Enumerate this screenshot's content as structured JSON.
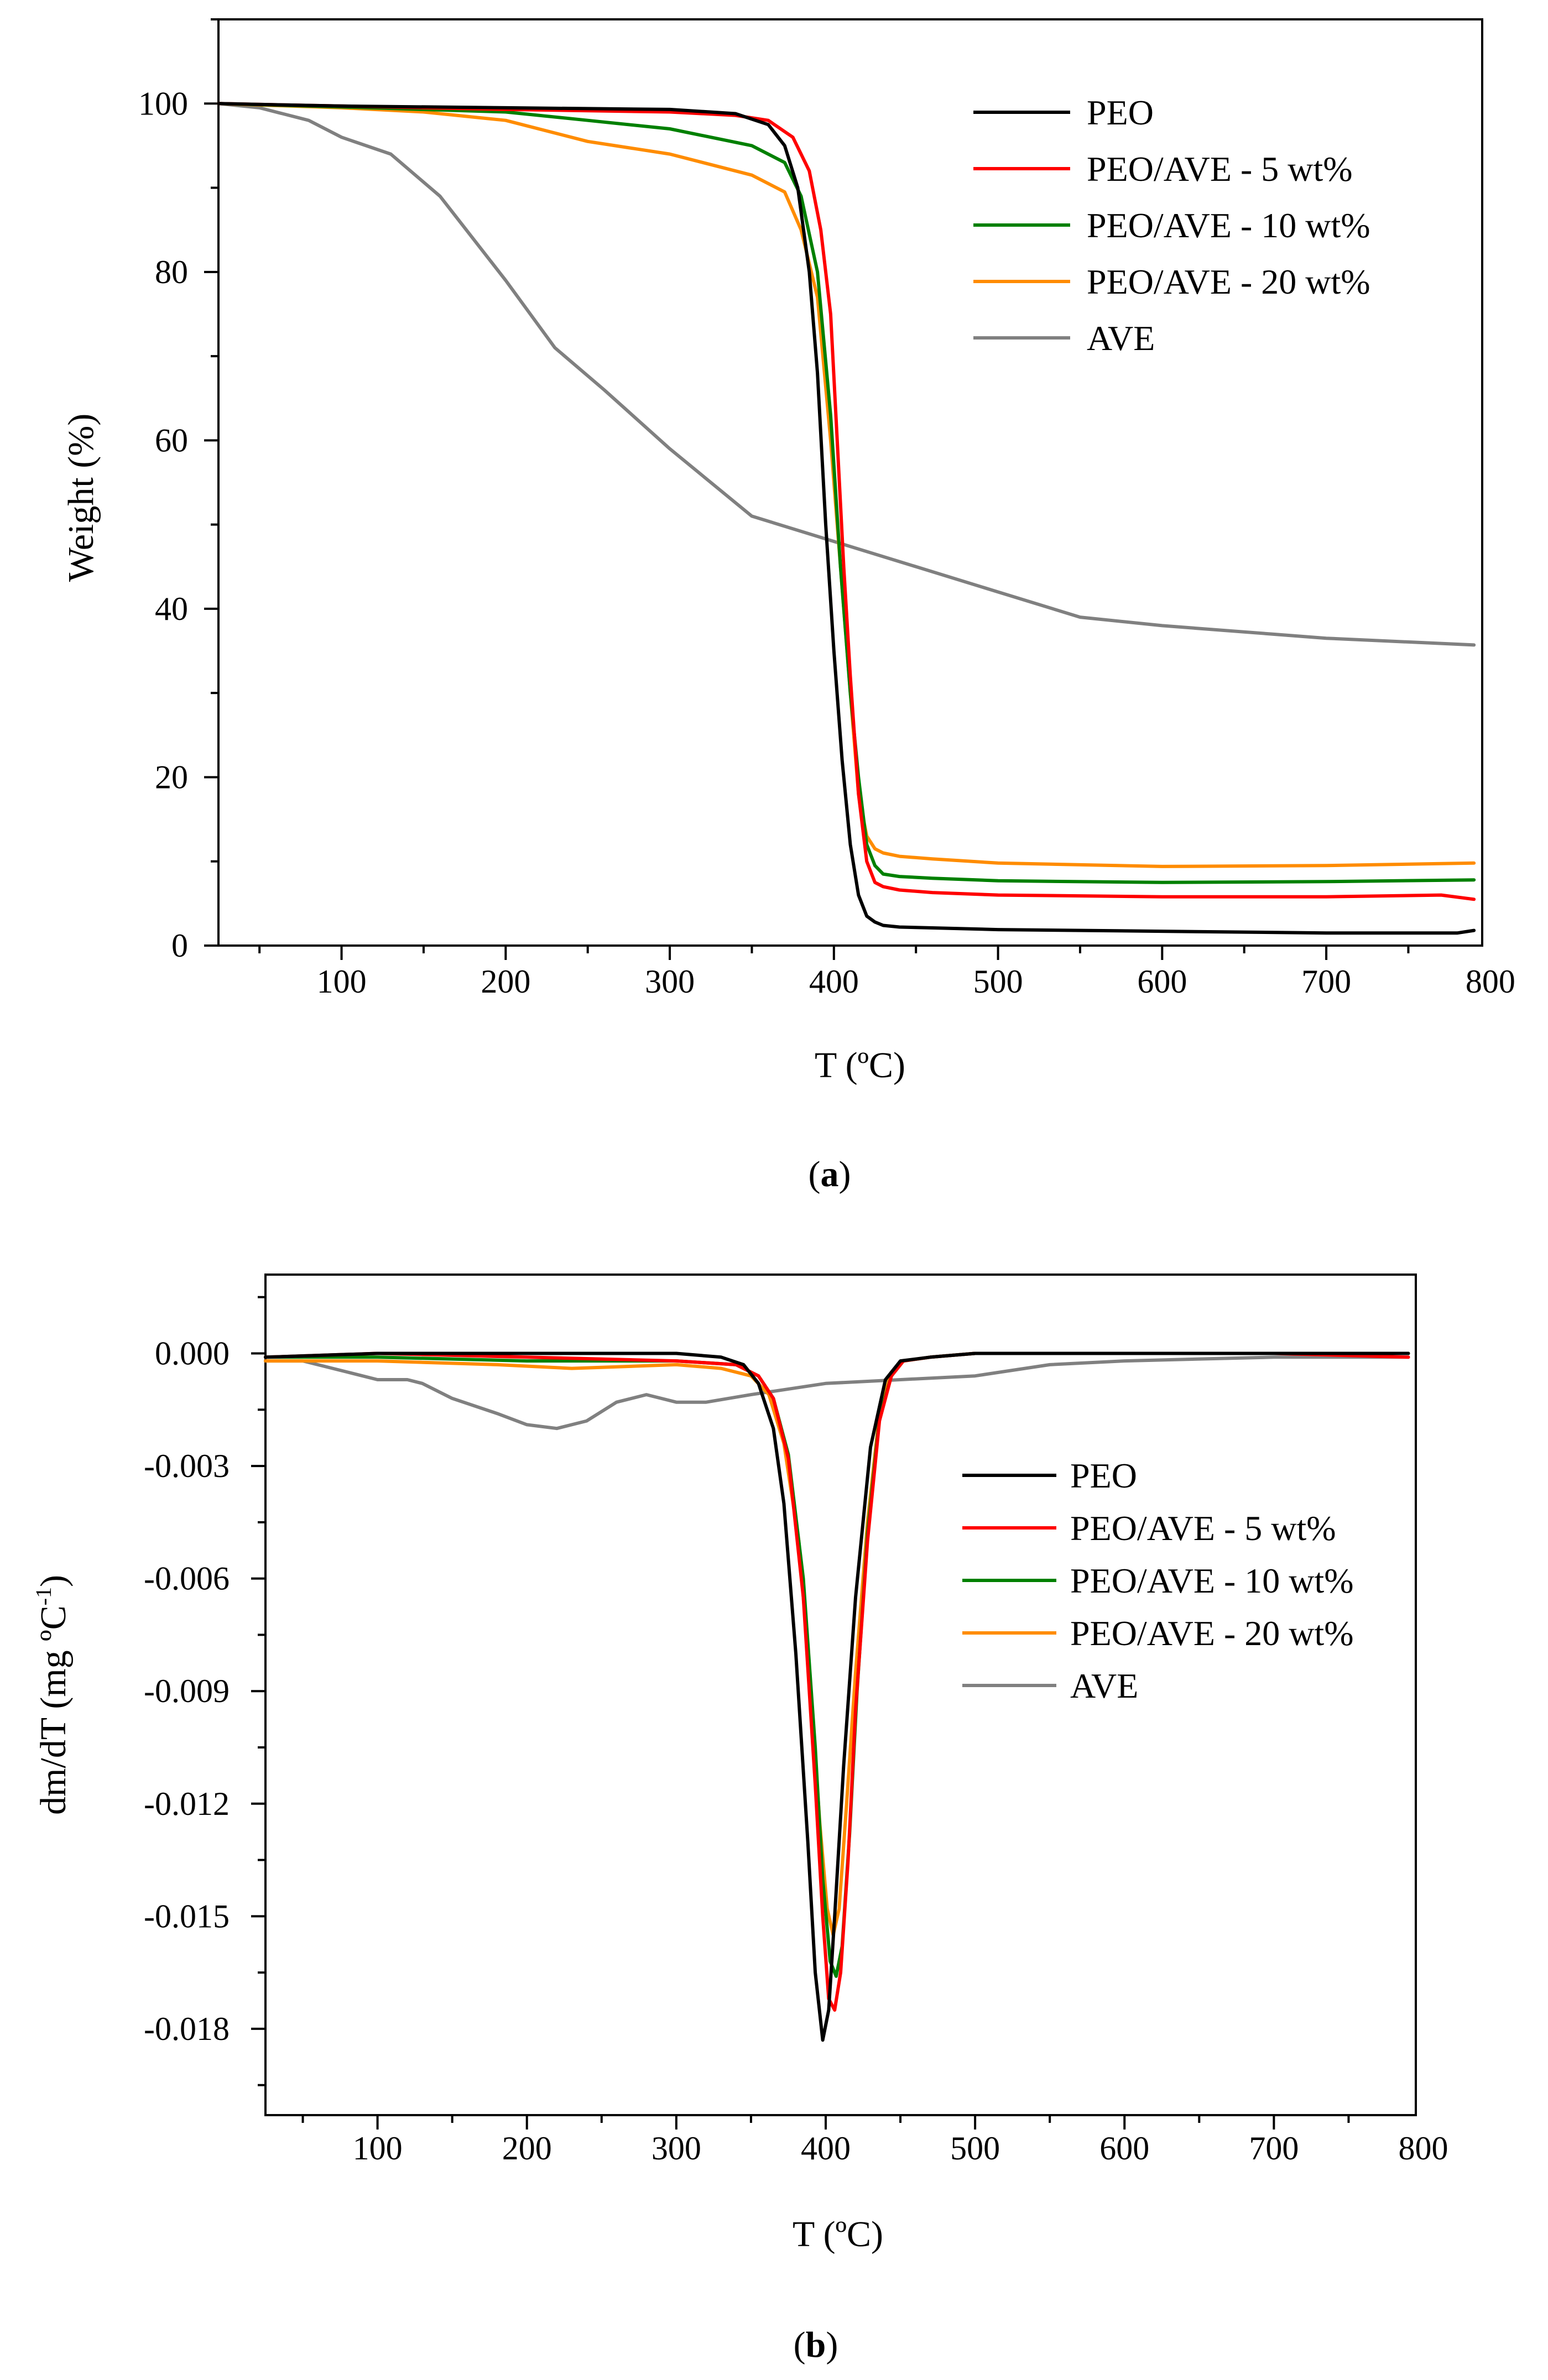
{
  "figure": {
    "caption_a": {
      "open": "(",
      "letter": "a",
      "close": ")"
    },
    "caption_b": {
      "open": "(",
      "letter": "b",
      "close": ")"
    }
  },
  "chart_data": [
    {
      "id": "a",
      "type": "line",
      "title": "",
      "xlabel": "T (ºC)",
      "ylabel": "Weight (%)",
      "xlim": [
        25,
        795
      ],
      "ylim": [
        0,
        110
      ],
      "xticks": [
        100,
        200,
        300,
        400,
        500,
        600,
        700,
        800
      ],
      "yticks": [
        0,
        20,
        40,
        60,
        80,
        100
      ],
      "grid": false,
      "legend_position": "top-right",
      "series": [
        {
          "name": "PEO",
          "color": "#000000",
          "x": [
            25,
            100,
            200,
            300,
            340,
            360,
            370,
            378,
            385,
            390,
            395,
            400,
            405,
            410,
            415,
            420,
            425,
            430,
            440,
            460,
            500,
            600,
            700,
            780,
            790
          ],
          "y": [
            100,
            99.7,
            99.5,
            99.3,
            98.8,
            97.5,
            95,
            90,
            80,
            68,
            50,
            35,
            22,
            12,
            6,
            3.5,
            2.8,
            2.4,
            2.2,
            2.1,
            1.9,
            1.7,
            1.5,
            1.5,
            1.8
          ]
        },
        {
          "name": "PEO/AVE - 5 wt%",
          "color": "#ff0000",
          "x": [
            25,
            100,
            200,
            300,
            340,
            360,
            375,
            385,
            392,
            398,
            402,
            406,
            410,
            415,
            420,
            425,
            430,
            440,
            460,
            500,
            600,
            700,
            770,
            790
          ],
          "y": [
            100,
            99.7,
            99.3,
            99,
            98.6,
            98,
            96,
            92,
            85,
            75,
            60,
            45,
            32,
            18,
            10,
            7.5,
            7,
            6.6,
            6.3,
            6,
            5.8,
            5.8,
            6,
            5.5
          ]
        },
        {
          "name": "PEO/AVE - 10 wt%",
          "color": "#008000",
          "x": [
            25,
            100,
            200,
            250,
            300,
            350,
            370,
            380,
            390,
            398,
            404,
            410,
            415,
            420,
            425,
            430,
            440,
            460,
            500,
            600,
            700,
            790
          ],
          "y": [
            100,
            99.6,
            99,
            98,
            97,
            95,
            93,
            89,
            80,
            63,
            45,
            30,
            20,
            12,
            9.5,
            8.5,
            8.2,
            8,
            7.7,
            7.5,
            7.6,
            7.8
          ]
        },
        {
          "name": "PEO/AVE - 20 wt%",
          "color": "#ff8c00",
          "x": [
            25,
            100,
            150,
            200,
            250,
            300,
            350,
            370,
            380,
            390,
            398,
            404,
            410,
            415,
            420,
            425,
            430,
            440,
            460,
            500,
            600,
            700,
            790
          ],
          "y": [
            100,
            99.5,
            99,
            98,
            95.5,
            94,
            91.5,
            89.5,
            85,
            77,
            60,
            45,
            30,
            18,
            13,
            11.5,
            11,
            10.6,
            10.3,
            9.8,
            9.4,
            9.5,
            9.8
          ]
        },
        {
          "name": "AVE",
          "color": "#808080",
          "x": [
            25,
            50,
            80,
            100,
            130,
            160,
            200,
            230,
            260,
            300,
            350,
            400,
            450,
            500,
            550,
            600,
            700,
            790
          ],
          "y": [
            100,
            99.5,
            98,
            96,
            94,
            89,
            79,
            71,
            66,
            59,
            51,
            48,
            45,
            42,
            39,
            38,
            36.5,
            35.7
          ]
        }
      ]
    },
    {
      "id": "b",
      "type": "line",
      "title": "",
      "xlabel": "T (ºC)",
      "ylabel_main": "dm/dT (mg ºC",
      "ylabel_sup": "-1",
      "ylabel_close": ")",
      "xlim": [
        25,
        795
      ],
      "ylim": [
        -0.0203,
        0.0021
      ],
      "xticks": [
        100,
        200,
        300,
        400,
        500,
        600,
        700,
        800
      ],
      "yticks": [
        0.0,
        -0.003,
        -0.006,
        -0.009,
        -0.012,
        -0.015,
        -0.018
      ],
      "ytick_labels": [
        "0.000",
        "-0.003",
        "-0.006",
        "-0.009",
        "-0.012",
        "-0.015",
        "-0.018"
      ],
      "grid": false,
      "legend_position": "middle-right",
      "series": [
        {
          "name": "PEO",
          "color": "#000000",
          "x": [
            25,
            100,
            200,
            300,
            330,
            345,
            355,
            365,
            372,
            380,
            388,
            393,
            398,
            402,
            406,
            412,
            420,
            430,
            440,
            450,
            470,
            500,
            600,
            700,
            790
          ],
          "y": [
            -0.0001,
            0,
            0,
            0,
            -0.0001,
            -0.0003,
            -0.0008,
            -0.002,
            -0.004,
            -0.008,
            -0.013,
            -0.0165,
            -0.0183,
            -0.0175,
            -0.015,
            -0.011,
            -0.0065,
            -0.0025,
            -0.0007,
            -0.0002,
            -0.0001,
            0,
            0,
            0,
            0
          ]
        },
        {
          "name": "PEO/AVE - 5 wt%",
          "color": "#ff0000",
          "x": [
            25,
            100,
            200,
            300,
            340,
            355,
            365,
            375,
            385,
            393,
            398,
            402,
            406,
            410,
            415,
            420,
            428,
            436,
            444,
            452,
            470,
            500,
            600,
            700,
            790
          ],
          "y": [
            -0.0001,
            0,
            -0.0001,
            -0.0002,
            -0.0003,
            -0.0006,
            -0.0012,
            -0.0028,
            -0.0065,
            -0.0115,
            -0.015,
            -0.0172,
            -0.0175,
            -0.0165,
            -0.0135,
            -0.0095,
            -0.005,
            -0.0018,
            -0.0006,
            -0.0002,
            -0.0001,
            0,
            0,
            0,
            -0.0001
          ]
        },
        {
          "name": "PEO/AVE - 10 wt%",
          "color": "#008000",
          "x": [
            25,
            100,
            200,
            300,
            340,
            355,
            365,
            375,
            385,
            393,
            398,
            403,
            407,
            411,
            416,
            421,
            428,
            436,
            444,
            452,
            470,
            500,
            600,
            790
          ],
          "y": [
            -0.0001,
            -0.0001,
            -0.0002,
            -0.0002,
            -0.0003,
            -0.0006,
            -0.0012,
            -0.0027,
            -0.006,
            -0.0105,
            -0.014,
            -0.0162,
            -0.0166,
            -0.0158,
            -0.0128,
            -0.009,
            -0.0048,
            -0.0017,
            -0.0006,
            -0.0002,
            -0.0001,
            0,
            0,
            0
          ]
        },
        {
          "name": "PEO/AVE - 20 wt%",
          "color": "#ff8c00",
          "x": [
            25,
            100,
            180,
            230,
            300,
            330,
            350,
            362,
            372,
            382,
            390,
            396,
            401,
            405,
            409,
            414,
            420,
            428,
            436,
            444,
            452,
            470,
            500,
            600,
            790
          ],
          "y": [
            -0.0002,
            -0.0002,
            -0.0003,
            -0.0004,
            -0.0003,
            -0.0004,
            -0.0006,
            -0.0011,
            -0.0024,
            -0.005,
            -0.009,
            -0.0125,
            -0.0148,
            -0.0155,
            -0.0148,
            -0.012,
            -0.0085,
            -0.0045,
            -0.0016,
            -0.0005,
            -0.0002,
            -0.0001,
            0,
            0,
            0
          ]
        },
        {
          "name": "AVE",
          "color": "#808080",
          "x": [
            25,
            50,
            80,
            100,
            120,
            130,
            150,
            180,
            200,
            220,
            240,
            260,
            280,
            300,
            320,
            350,
            400,
            450,
            500,
            550,
            600,
            700,
            790
          ],
          "y": [
            -0.0002,
            -0.0002,
            -0.0005,
            -0.0007,
            -0.0007,
            -0.0008,
            -0.0012,
            -0.0016,
            -0.0019,
            -0.002,
            -0.0018,
            -0.0013,
            -0.0011,
            -0.0013,
            -0.0013,
            -0.0011,
            -0.0008,
            -0.0007,
            -0.0006,
            -0.0003,
            -0.0002,
            -0.0001,
            -0.0001
          ]
        }
      ]
    }
  ]
}
